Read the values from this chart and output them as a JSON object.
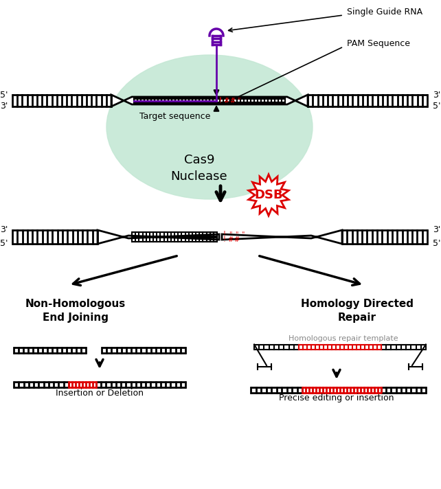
{
  "bg_color": "#ffffff",
  "cas9_color": "#c5e8d5",
  "dna_black": "#000000",
  "red": "#dd0000",
  "purple": "#6600aa",
  "gray": "#888888",
  "labels": {
    "sgrna": "Single Guide RNA",
    "pam": "PAM Sequence",
    "target": "Target sequence",
    "cas9": "Cas9\nNuclease",
    "dsb": "DSB",
    "nhej": "Non-Homologous\nEnd Joining",
    "hdr": "Homology Directed\nRepair",
    "template": "Homologous repair template",
    "nhej_result": "Insertion or Deletion",
    "hdr_result": "Precise editing or insertion"
  },
  "fig_w": 6.42,
  "fig_h": 7.12,
  "dpi": 100
}
